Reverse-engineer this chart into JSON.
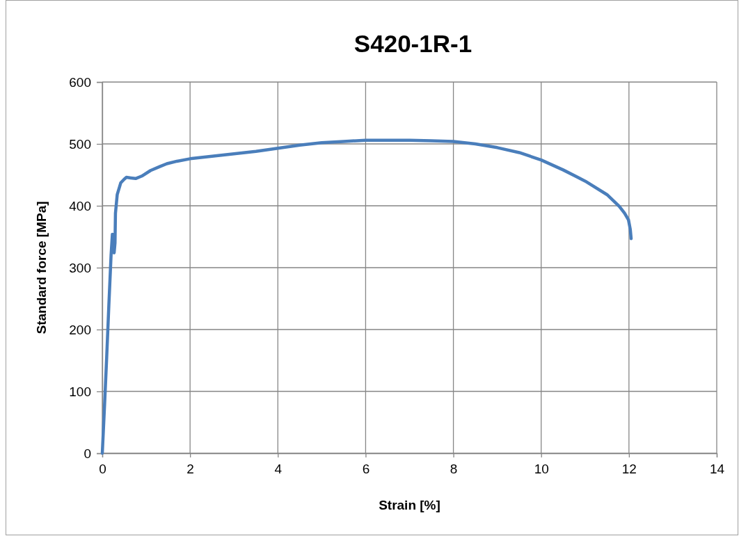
{
  "chart_data": {
    "type": "line",
    "title": "S420-1R-1",
    "xlabel": "Strain [%]",
    "ylabel": "Standard force [MPa]",
    "xlim": [
      0,
      14
    ],
    "xticks": [
      0,
      2,
      4,
      6,
      8,
      10,
      12,
      14
    ],
    "ylim": [
      0,
      600
    ],
    "yticks": [
      0,
      100,
      200,
      300,
      400,
      500,
      600
    ],
    "grid": true,
    "marker": "none",
    "line_style": "solid",
    "series": [
      {
        "color": "#4a7ebb",
        "x": [
          0,
          0.05,
          0.1,
          0.15,
          0.2,
          0.23,
          0.24,
          0.26,
          0.27,
          0.29,
          0.3,
          0.34,
          0.42,
          0.5,
          0.55,
          0.65,
          0.76,
          0.9,
          1.1,
          1.3,
          1.47,
          1.7,
          2,
          2.5,
          3,
          3.5,
          4,
          4.5,
          5,
          5.5,
          6,
          6.5,
          7,
          7.5,
          8,
          8.5,
          9,
          9.5,
          10,
          10.5,
          11,
          11.5,
          11.78,
          11.9,
          11.99,
          12.03,
          12.05
        ],
        "values": [
          0,
          75,
          155,
          240,
          320,
          354,
          330,
          354,
          324,
          340,
          388,
          418,
          437,
          443,
          446,
          445,
          444,
          448,
          457,
          463,
          468,
          472,
          476,
          480,
          484,
          488,
          493,
          498,
          502,
          504,
          506,
          506,
          506,
          505,
          504,
          500,
          494,
          486,
          474,
          458,
          440,
          418,
          399,
          388,
          377,
          362,
          347
        ]
      }
    ]
  }
}
